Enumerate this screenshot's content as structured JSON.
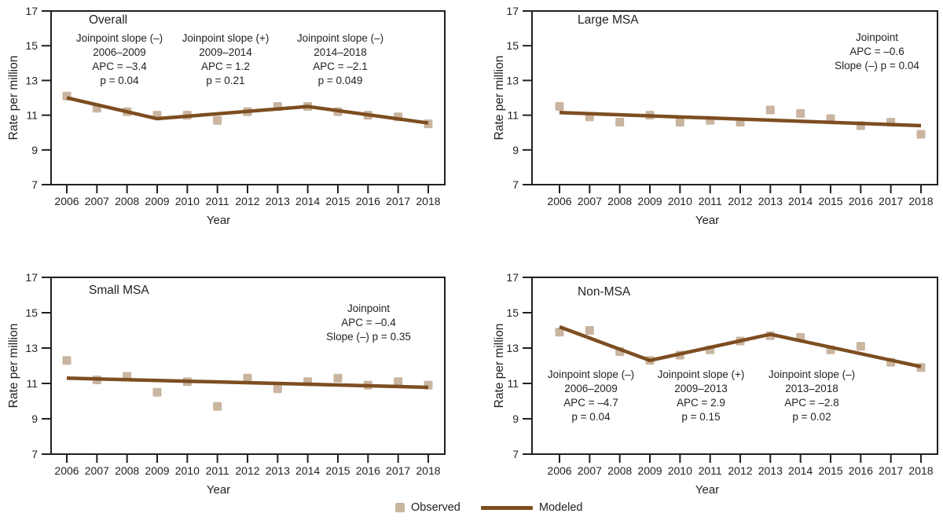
{
  "figure": {
    "xlabel": "Year",
    "ylabel": "Rate per million",
    "legend": {
      "observed": "Observed",
      "modeled": "Modeled"
    }
  },
  "colors": {
    "observed_marker": "#c9b5a0",
    "modeled_line": "#7d4e21",
    "axis_and_text": "#231f20"
  },
  "chart_data": [
    {
      "type": "scatter",
      "title": "Overall",
      "xlabel": "Year",
      "ylabel": "Rate per million",
      "ylim": [
        7,
        17
      ],
      "yticks": [
        7,
        9,
        11,
        13,
        15,
        17
      ],
      "x": [
        2006,
        2007,
        2008,
        2009,
        2010,
        2011,
        2012,
        2013,
        2014,
        2015,
        2016,
        2017,
        2018
      ],
      "series": [
        {
          "name": "Observed",
          "type": "scatter",
          "values": [
            12.1,
            11.4,
            11.2,
            11.0,
            11.0,
            10.7,
            11.2,
            11.5,
            11.5,
            11.2,
            11.0,
            10.9,
            10.5
          ]
        },
        {
          "name": "Modeled",
          "type": "line",
          "points": [
            [
              2006,
              12.0
            ],
            [
              2009,
              10.8
            ],
            [
              2014,
              11.5
            ],
            [
              2018,
              10.55
            ]
          ]
        }
      ],
      "annotations": [
        {
          "lines": [
            "Joinpoint slope (–)",
            "2006–2009",
            "APC = –3.4",
            "p = 0.04"
          ]
        },
        {
          "lines": [
            "Joinpoint slope (+)",
            "2009–2014",
            "APC = 1.2",
            "p = 0.21"
          ]
        },
        {
          "lines": [
            "Joinpoint slope (–)",
            "2014–2018",
            "APC = –2.1",
            "p = 0.049"
          ]
        }
      ]
    },
    {
      "type": "scatter",
      "title": "Large MSA",
      "xlabel": "Year",
      "ylabel": "Rate per million",
      "ylim": [
        7,
        17
      ],
      "yticks": [
        7,
        9,
        11,
        13,
        15,
        17
      ],
      "x": [
        2006,
        2007,
        2008,
        2009,
        2010,
        2011,
        2012,
        2013,
        2014,
        2015,
        2016,
        2017,
        2018
      ],
      "series": [
        {
          "name": "Observed",
          "type": "scatter",
          "values": [
            11.5,
            10.9,
            10.6,
            11.0,
            10.6,
            10.7,
            10.6,
            11.3,
            11.1,
            10.8,
            10.4,
            10.6,
            9.9
          ]
        },
        {
          "name": "Modeled",
          "type": "line",
          "points": [
            [
              2006,
              11.15
            ],
            [
              2018,
              10.4
            ]
          ]
        }
      ],
      "annotations": [
        {
          "lines": [
            "Joinpoint",
            "APC = –0.6",
            "Slope (–) p = 0.04"
          ]
        }
      ]
    },
    {
      "type": "scatter",
      "title": "Small MSA",
      "xlabel": "Year",
      "ylabel": "Rate per million",
      "ylim": [
        7,
        17
      ],
      "yticks": [
        7,
        9,
        11,
        13,
        15,
        17
      ],
      "x": [
        2006,
        2007,
        2008,
        2009,
        2010,
        2011,
        2012,
        2013,
        2014,
        2015,
        2016,
        2017,
        2018
      ],
      "series": [
        {
          "name": "Observed",
          "type": "scatter",
          "values": [
            12.3,
            11.2,
            11.4,
            10.5,
            11.1,
            9.7,
            11.3,
            10.7,
            11.1,
            11.3,
            10.9,
            11.1,
            10.9
          ]
        },
        {
          "name": "Modeled",
          "type": "line",
          "points": [
            [
              2006,
              11.3
            ],
            [
              2018,
              10.78
            ]
          ]
        }
      ],
      "annotations": [
        {
          "lines": [
            "Joinpoint",
            "APC = –0.4",
            "Slope (–) p = 0.35"
          ]
        }
      ]
    },
    {
      "type": "scatter",
      "title": "Non-MSA",
      "xlabel": "Year",
      "ylabel": "Rate per million",
      "ylim": [
        7,
        17
      ],
      "yticks": [
        7,
        9,
        11,
        13,
        15,
        17
      ],
      "x": [
        2006,
        2007,
        2008,
        2009,
        2010,
        2011,
        2012,
        2013,
        2014,
        2015,
        2016,
        2017,
        2018
      ],
      "series": [
        {
          "name": "Observed",
          "type": "scatter",
          "values": [
            13.9,
            14.0,
            12.8,
            12.3,
            12.6,
            12.9,
            13.4,
            13.7,
            13.6,
            12.9,
            13.1,
            12.2,
            11.9
          ]
        },
        {
          "name": "Modeled",
          "type": "line",
          "points": [
            [
              2006,
              14.2
            ],
            [
              2009,
              12.3
            ],
            [
              2013,
              13.78
            ],
            [
              2018,
              11.95
            ]
          ]
        }
      ],
      "annotations": [
        {
          "lines": [
            "Joinpoint slope (–)",
            "2006–2009",
            "APC = –4.7",
            "p = 0.04"
          ]
        },
        {
          "lines": [
            "Joinpoint slope (+)",
            "2009–2013",
            "APC = 2.9",
            "p = 0.15"
          ]
        },
        {
          "lines": [
            "Joinpoint slope (–)",
            "2013–2018",
            "APC = –2.8",
            "p = 0.02"
          ]
        }
      ]
    }
  ]
}
